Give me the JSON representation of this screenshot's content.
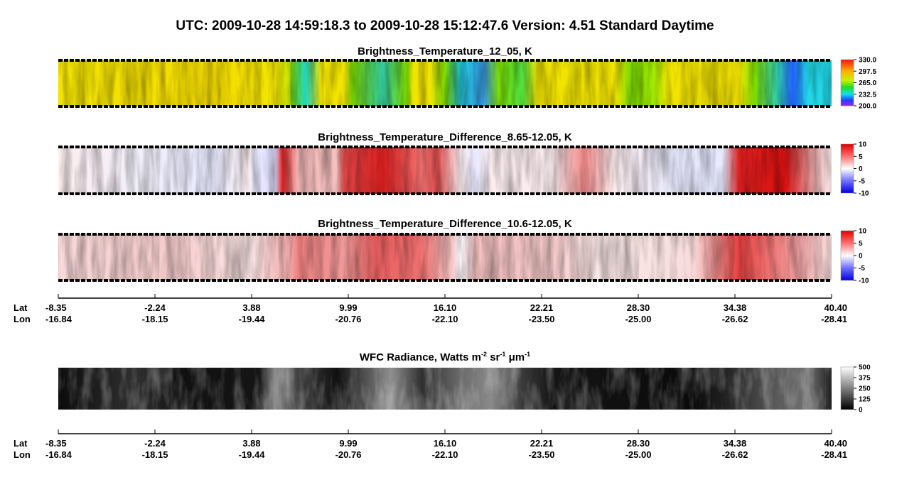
{
  "title": "UTC:  2009-10-28   14:59:18.3  to  2009-10-28   15:12:47.6    Version: 4.51  Standard Daytime",
  "panels": [
    {
      "title": "Brightness_Temperature_12_05, K",
      "colorbar": [
        "330.0",
        "297.5",
        "265.0",
        "232.5",
        "200.0"
      ]
    },
    {
      "title": "Brightness_Temperature_Difference_8.65-12.05, K",
      "colorbar": [
        "10",
        "5",
        "0",
        "-5",
        "-10"
      ]
    },
    {
      "title": "Brightness_Temperature_Difference_10.6-12.05, K",
      "colorbar": [
        "10",
        "5",
        "0",
        "-5",
        "-10"
      ]
    },
    {
      "title": [
        "WFC Radiance, Watts m",
        "-2",
        " sr",
        "-1",
        " μm",
        "-1"
      ],
      "colorbar": [
        "500",
        "375",
        "250",
        "125",
        "0"
      ]
    }
  ],
  "axes": [
    {
      "lat_label": "Lat",
      "lon_label": "Lon",
      "lat": [
        "-8.35",
        "-2.24",
        "3.88",
        "9.99",
        "16.10",
        "22.21",
        "28.30",
        "34.38",
        "40.40"
      ],
      "lon": [
        "-16.84",
        "-18.15",
        "-19.44",
        "-20.76",
        "-22.10",
        "-23.50",
        "-25.00",
        "-26.62",
        "-28.41"
      ]
    },
    {
      "lat_label": "Lat",
      "lon_label": "Lon",
      "lat": [
        "-8.35",
        "-2.24",
        "3.88",
        "9.99",
        "16.10",
        "22.21",
        "28.30",
        "34.38",
        "40.40"
      ],
      "lon": [
        "-16.84",
        "-18.15",
        "-19.44",
        "-20.76",
        "-22.10",
        "-23.50",
        "-25.00",
        "-26.62",
        "-28.41"
      ]
    }
  ]
}
